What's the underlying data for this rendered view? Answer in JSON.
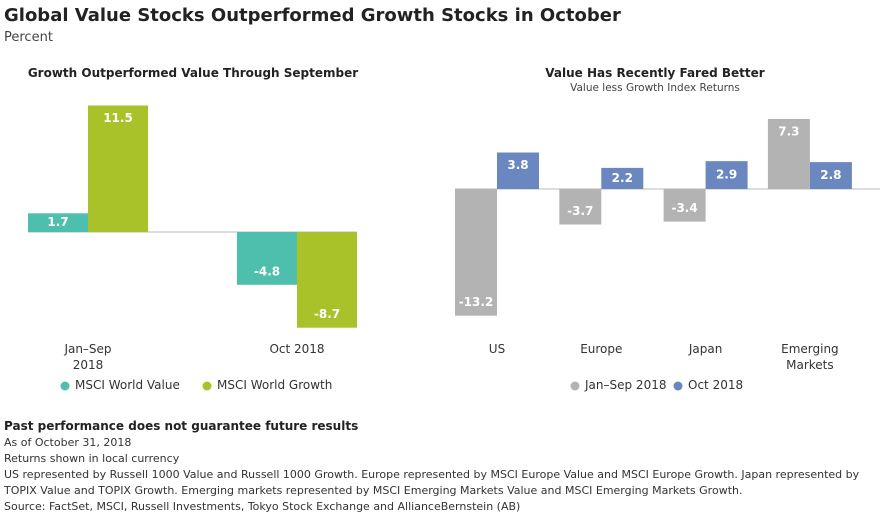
{
  "title": "Global Value Stocks Outperformed Growth Stocks in October",
  "subtitle": "Percent",
  "chart_data": [
    {
      "type": "bar",
      "title": "Growth Outperformed Value Through September",
      "categories": [
        "Jan–Sep 2018",
        "Oct 2018"
      ],
      "series": [
        {
          "name": "MSCI World Value",
          "color": "#4fbfad",
          "values": [
            1.7,
            -4.8
          ]
        },
        {
          "name": "MSCI World Growth",
          "color": "#aac22a",
          "values": [
            11.5,
            -8.7
          ]
        }
      ]
    },
    {
      "type": "bar",
      "title": "Value Has Recently Fared Better",
      "subtitle": "Value less Growth Index Returns",
      "categories": [
        "US",
        "Europe",
        "Japan",
        "Emerging Markets"
      ],
      "series": [
        {
          "name": "Jan–Sep 2018",
          "color": "#b3b3b3",
          "values": [
            -13.2,
            -3.7,
            -3.4,
            7.3
          ]
        },
        {
          "name": "Oct 2018",
          "color": "#6a87bf",
          "values": [
            3.8,
            2.2,
            2.9,
            2.8
          ]
        }
      ]
    }
  ],
  "notes": {
    "heading": "Past performance does not guarantee future results",
    "lines": [
      "As of October 31, 2018",
      "Returns shown in local currency",
      "US represented by Russell 1000 Value and Russell 1000 Growth. Europe represented by MSCI Europe Value and MSCI Europe Growth. Japan represented by TOPIX Value and TOPIX Growth. Emerging markets represented by MSCI Emerging Markets Value and MSCI Emerging Markets Growth.",
      "Source: FactSet, MSCI, Russell Investments, Tokyo Stock Exchange and AllianceBernstein (AB)"
    ]
  }
}
